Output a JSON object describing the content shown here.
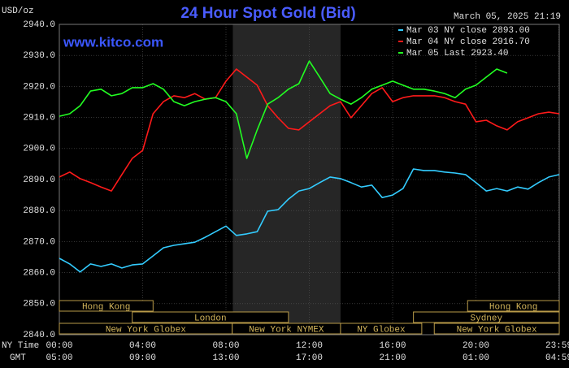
{
  "chart_data": {
    "type": "line",
    "title": "24 Hour Spot Gold (Bid)",
    "timestamp": "March 05, 2025 21:19",
    "y_label": "USD/oz",
    "site": "www.kitco.com",
    "x_row_labels": [
      "NY Time",
      "GMT"
    ],
    "legend": "upper right",
    "grid": true,
    "xlim": [
      0,
      24
    ],
    "ylim": [
      2840,
      2940
    ],
    "yticks": [
      {
        "value": 2840,
        "label": "2840.0"
      },
      {
        "value": 2850,
        "label": "2850.0"
      },
      {
        "value": 2860,
        "label": "2860.0"
      },
      {
        "value": 2870,
        "label": "2870.0"
      },
      {
        "value": 2880,
        "label": "2880.0"
      },
      {
        "value": 2890,
        "label": "2890.0"
      },
      {
        "value": 2900,
        "label": "2900.0"
      },
      {
        "value": 2910,
        "label": "2910.0"
      },
      {
        "value": 2920,
        "label": "2920.0"
      },
      {
        "value": 2930,
        "label": "2930.0"
      },
      {
        "value": 2940,
        "label": "2940.0"
      }
    ],
    "xticks": [
      {
        "value": 0,
        "label": "00:00"
      },
      {
        "value": 4,
        "label": "04:00"
      },
      {
        "value": 8,
        "label": "08:00"
      },
      {
        "value": 12,
        "label": "12:00"
      },
      {
        "value": 16,
        "label": "16:00"
      },
      {
        "value": 20,
        "label": "20:00"
      },
      {
        "value": 23.98,
        "label": "23:59"
      }
    ],
    "x2_tick_labels": [
      "05:00",
      "09:00",
      "13:00",
      "17:00",
      "21:00",
      "01:00",
      "04:59"
    ],
    "shaded_range": [
      8.33,
      13.5
    ],
    "session_rows": [
      [
        {
          "name": "Hong Kong",
          "start": 0,
          "end": 4.5
        },
        {
          "name": "Hong Kong",
          "start": 19.6,
          "end": 24
        }
      ],
      [
        {
          "name": "London",
          "start": 3.5,
          "end": 11
        },
        {
          "name": "Sydney",
          "start": 17,
          "end": 24
        }
      ],
      [
        {
          "name": "New York Globex",
          "start": 0,
          "end": 8.3
        },
        {
          "name": "New York NYMEX",
          "start": 8.3,
          "end": 13.5
        },
        {
          "name": "NY Globex",
          "start": 13.5,
          "end": 17.4
        },
        {
          "name": "New York Globex",
          "start": 18,
          "end": 24
        }
      ]
    ],
    "x": [
      0,
      0.5,
      1,
      1.5,
      2,
      2.5,
      3,
      3.5,
      4,
      4.5,
      5,
      5.5,
      6,
      6.5,
      7,
      7.5,
      8,
      8.5,
      9,
      9.5,
      10,
      10.5,
      11,
      11.5,
      12,
      12.5,
      13,
      13.5,
      14,
      14.5,
      15,
      15.5,
      16,
      16.5,
      17,
      17.5,
      18,
      18.5,
      19,
      19.5,
      20,
      20.5,
      21,
      21.5,
      22,
      22.5,
      23,
      23.5,
      24
    ],
    "series": [
      {
        "name": "Mar 03 NY close 2893.00",
        "color": "#33ccff",
        "values": [
          2864.6,
          2862.8,
          2860.2,
          2862.8,
          2862,
          2862.8,
          2861.5,
          2862.5,
          2862.8,
          2865.4,
          2868,
          2868.8,
          2869.3,
          2869.8,
          2871.4,
          2873.2,
          2875,
          2872,
          2872.5,
          2873.2,
          2879.8,
          2880.3,
          2883.7,
          2886.3,
          2887.1,
          2889,
          2890.8,
          2890.3,
          2889,
          2887.6,
          2888.2,
          2884.2,
          2885,
          2887.1,
          2893.4,
          2892.9,
          2892.9,
          2892.4,
          2892.1,
          2891.6,
          2889,
          2886.3,
          2887.1,
          2886.3,
          2887.6,
          2886.9,
          2889,
          2890.8,
          2891.6
        ]
      },
      {
        "name": "Mar 04 NY close 2916.70",
        "color": "#ff1a1a",
        "values": [
          2890.8,
          2892.4,
          2890.3,
          2889,
          2887.6,
          2886.3,
          2891.6,
          2896.8,
          2899.4,
          2911.2,
          2915.1,
          2917,
          2916.4,
          2917.7,
          2915.9,
          2916.4,
          2921.7,
          2925.6,
          2923,
          2920.4,
          2913.8,
          2909.9,
          2906.5,
          2906,
          2908.6,
          2911.2,
          2913.8,
          2915.1,
          2909.9,
          2913.8,
          2917.7,
          2919.6,
          2915.1,
          2916.4,
          2917,
          2917,
          2917,
          2916.4,
          2915.1,
          2914.3,
          2908.6,
          2909.1,
          2907.3,
          2906,
          2908.6,
          2909.9,
          2911.2,
          2911.7,
          2911.2
        ]
      },
      {
        "name": "Mar 05 Last 2923.40",
        "color": "#22ff22",
        "values": [
          2910.4,
          2911.2,
          2913.8,
          2918.5,
          2919.1,
          2917,
          2917.7,
          2919.6,
          2919.6,
          2920.9,
          2919.1,
          2915.1,
          2913.8,
          2915.1,
          2915.9,
          2916.4,
          2915.1,
          2911.2,
          2896.8,
          2906,
          2914.3,
          2916.4,
          2919.1,
          2920.9,
          2928.2,
          2923,
          2917.7,
          2915.9,
          2914.3,
          2916.4,
          2919.1,
          2920.4,
          2921.7,
          2920.4,
          2919.1,
          2919.1,
          2918.5,
          2917.7,
          2916.4,
          2919.1,
          2920.4,
          2923,
          2925.6,
          2924.3,
          null,
          null,
          null,
          null,
          null
        ]
      }
    ]
  }
}
